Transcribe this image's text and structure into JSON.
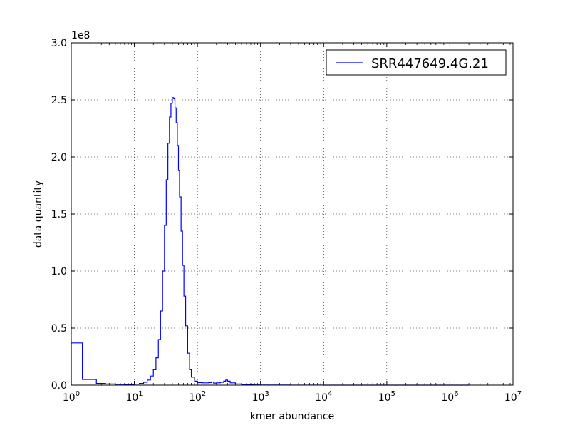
{
  "chart_data": {
    "type": "line",
    "title": "",
    "xlabel": "kmer abundance",
    "ylabel": "data quantity",
    "xscale": "log",
    "xlim": [
      1,
      10000000
    ],
    "ylim": [
      0,
      300000000
    ],
    "y_offset_label": "1e8",
    "grid": true,
    "legend_position": "top-right",
    "x_ticks": [
      {
        "base": "10",
        "exp": "0",
        "value": 1
      },
      {
        "base": "10",
        "exp": "1",
        "value": 10
      },
      {
        "base": "10",
        "exp": "2",
        "value": 100
      },
      {
        "base": "10",
        "exp": "3",
        "value": 1000
      },
      {
        "base": "10",
        "exp": "4",
        "value": 10000
      },
      {
        "base": "10",
        "exp": "5",
        "value": 100000
      },
      {
        "base": "10",
        "exp": "6",
        "value": 1000000
      },
      {
        "base": "10",
        "exp": "7",
        "value": 10000000
      }
    ],
    "y_ticks": [
      {
        "label": "0.0",
        "value": 0
      },
      {
        "label": "0.5",
        "value": 50000000
      },
      {
        "label": "1.0",
        "value": 100000000
      },
      {
        "label": "1.5",
        "value": 150000000
      },
      {
        "label": "2.0",
        "value": 200000000
      },
      {
        "label": "2.5",
        "value": 250000000
      },
      {
        "label": "3.0",
        "value": 300000000
      }
    ],
    "series": [
      {
        "name": "SRR447649.4G.21",
        "color": "#0000ff",
        "step": true,
        "x": [
          1,
          1.5,
          2.5,
          3.5,
          5,
          7,
          9,
          10,
          12,
          14,
          16,
          18,
          20,
          22,
          24,
          26,
          28,
          30,
          32,
          34,
          36,
          38,
          40,
          42,
          44,
          46,
          48,
          50,
          52,
          55,
          58,
          61,
          65,
          70,
          75,
          80,
          90,
          100,
          120,
          150,
          165,
          180,
          200,
          230,
          260,
          280,
          300,
          330,
          400,
          500,
          600,
          800,
          1000,
          3000,
          10000,
          100000,
          1000000,
          2000000
        ],
        "y": [
          37000000,
          5000000,
          1500000,
          1000000,
          800000,
          700000,
          700000,
          900000,
          1500000,
          2500000,
          4500000,
          8000000,
          14000000,
          24000000,
          40000000,
          65000000,
          100000000,
          140000000,
          180000000,
          212000000,
          235000000,
          247000000,
          252000000,
          251000000,
          243000000,
          230000000,
          210000000,
          188000000,
          165000000,
          135000000,
          105000000,
          78000000,
          52000000,
          28000000,
          14000000,
          7000000,
          3500000,
          2200000,
          2000000,
          2200000,
          2800000,
          1800000,
          2000000,
          2500000,
          3500000,
          4500000,
          3500000,
          2000000,
          1000000,
          500000,
          300000,
          200000,
          100000,
          50000,
          20000,
          10000,
          5000,
          0
        ]
      }
    ]
  }
}
